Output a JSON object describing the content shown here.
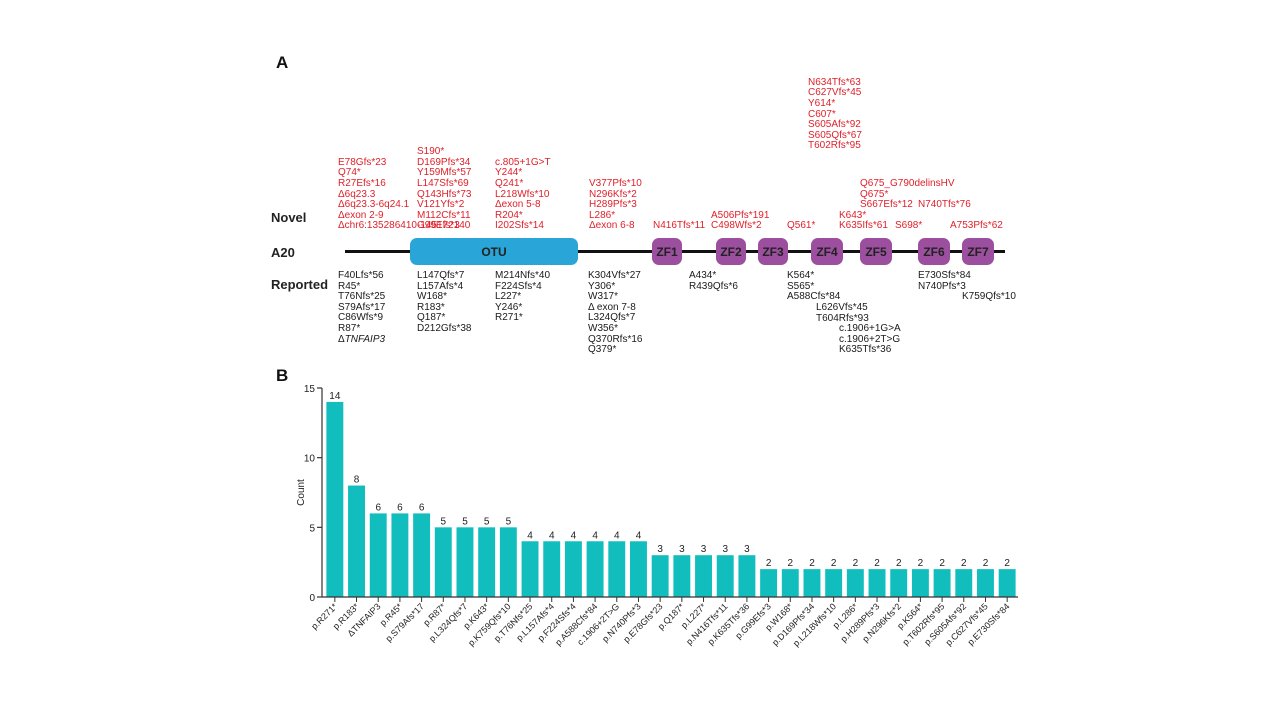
{
  "panel_a": {
    "label": "A",
    "row_labels": {
      "novel": "Novel",
      "protein": "A20",
      "reported": "Reported"
    },
    "domains": [
      {
        "name": "OTU",
        "type": "otu"
      },
      {
        "name": "ZF1",
        "type": "zf"
      },
      {
        "name": "ZF2",
        "type": "zf"
      },
      {
        "name": "ZF3",
        "type": "zf"
      },
      {
        "name": "ZF4",
        "type": "zf"
      },
      {
        "name": "ZF5",
        "type": "zf"
      },
      {
        "name": "ZF6",
        "type": "zf"
      },
      {
        "name": "ZF7",
        "type": "zf"
      }
    ],
    "novel_groups": [
      [
        "E78Gfs*23",
        "Q74*",
        "R27Efs*16",
        "Δ6q23.3",
        "Δ6q23.3-6q24.1",
        "Δexon 2-9",
        "Δchr6:135286410-145172140"
      ],
      [
        "S190*",
        "D169Pfs*34",
        "Y159Mfs*57",
        "L147Sfs*69",
        "Q143Hfs*73",
        "V121Yfs*2",
        "M112Cfs*11",
        "G99Efs*3"
      ],
      [
        "c.805+1G>T",
        "Y244*",
        "Q241*",
        "L218Wfs*10",
        "Δexon 5-8",
        "R204*",
        "I202Sfs*14"
      ],
      [
        "V377Pfs*10",
        "N296Kfs*2",
        "H289Pfs*3",
        "L286*",
        "Δexon 6-8"
      ],
      [
        "N416Tfs*11"
      ],
      [
        "A506Pfs*191",
        "C498Wfs*2"
      ],
      [
        "Q561*"
      ],
      [
        "N634Tfs*63",
        "C627Vfs*45",
        "Y614*",
        "C607*",
        "S605Afs*92",
        "S605Qfs*67",
        "T602Rfs*95"
      ],
      [
        "K643*",
        "K635Ifs*61"
      ],
      [
        "Q675_G790delinsHV",
        "Q675*",
        "S667Efs*12"
      ],
      [
        "S698*"
      ],
      [
        "N740Tfs*76"
      ],
      [
        "A753Pfs*62"
      ]
    ],
    "reported_groups": [
      [
        "F40Lfs*56",
        "R45*",
        "T76Nfs*25",
        "S79Afs*17",
        "C86Wfs*9",
        "R87*",
        "ΔTNFAIP3"
      ],
      [
        "L147Qfs*7",
        "L157Afs*4",
        "W168*",
        "R183*",
        "Q187*",
        "D212Gfs*38"
      ],
      [
        "M214Nfs*40",
        "F224Sfs*4",
        "L227*",
        "Y246*",
        "R271*"
      ],
      [
        "K304Vfs*27",
        "Y306*",
        "W317*",
        "Δ exon 7-8",
        "L324Qfs*7",
        "W356*",
        "Q370Rfs*16",
        "Q379*"
      ],
      [
        "A434*",
        "R439Qfs*6"
      ],
      [
        "K564*",
        "S565*",
        "A588Cfs*84"
      ],
      [
        "L626Vfs*45",
        "T604Rfs*93"
      ],
      [
        "c.1906+1G>A",
        "c.1906+2T>G",
        "K635Tfs*36"
      ],
      [
        "E730Sfs*84",
        "N740Pfs*3"
      ],
      [
        "K759Qfs*10"
      ]
    ],
    "colors": {
      "novel": "#e0202a",
      "reported": "#1a1a1a",
      "otu": "#2aa5d8",
      "zf": "#9b4f9e"
    }
  },
  "panel_b": {
    "label": "B"
  },
  "chart_data": {
    "type": "bar",
    "title": "",
    "xlabel": "",
    "ylabel": "Count",
    "ylim": [
      0,
      15
    ],
    "yticks": [
      0,
      5,
      10,
      15
    ],
    "grid": false,
    "bar_color": "#12bdbd",
    "categories": [
      "p.R271*",
      "p.R183*",
      "ΔTNFAIP3",
      "p.R45*",
      "p.S79Afs*17",
      "p.R87*",
      "p.L324Qfs*7",
      "p.K643*",
      "p.K759Qfs*10",
      "p.T76Nfs*25",
      "p.L157Afs*4",
      "p.F224Sfs*4",
      "p.A588Cfs*84",
      "c.1906+2T>G",
      "p.N740Pfs*3",
      "p.E78Gfs*23",
      "p.Q187*",
      "p.L227*",
      "p.N416Tfs*11",
      "p.K635Tfs*36",
      "p.G99Efs*3",
      "p.W168*",
      "p.D169Pfs*34",
      "p.L218Wfs*10",
      "p.L286*",
      "p.H289Pfs*3",
      "p.N296Kfs*2",
      "p.K564*",
      "p.T602Rfs*95",
      "p.S605Afs*92",
      "p.C627Vfs*45",
      "p.E730Sfs*84"
    ],
    "values": [
      14,
      8,
      6,
      6,
      6,
      5,
      5,
      5,
      5,
      4,
      4,
      4,
      4,
      4,
      4,
      3,
      3,
      3,
      3,
      3,
      2,
      2,
      2,
      2,
      2,
      2,
      2,
      2,
      2,
      2,
      2,
      2
    ]
  }
}
